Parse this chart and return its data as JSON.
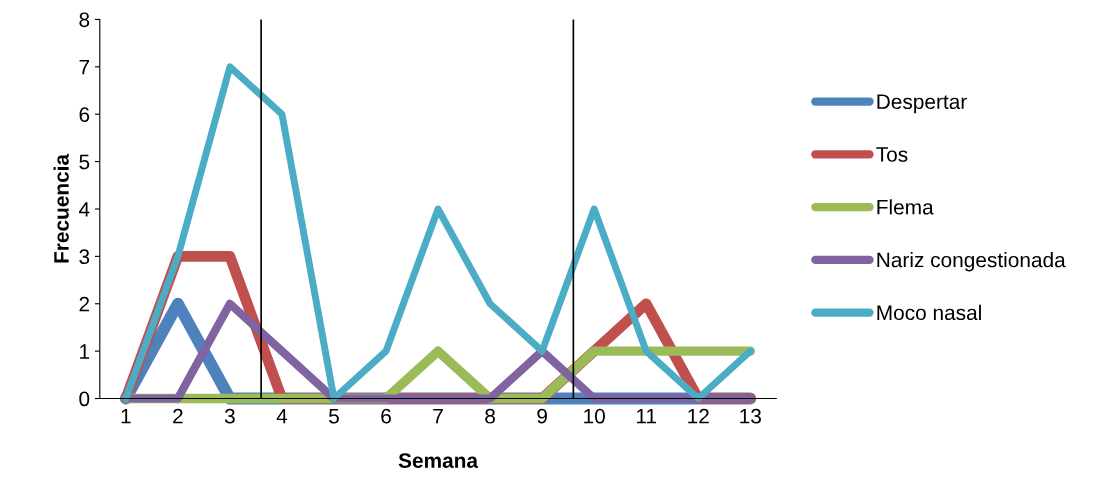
{
  "chart_data": {
    "type": "line",
    "xlabel": "Semana",
    "ylabel": "Frecuencia",
    "x": [
      1,
      2,
      3,
      4,
      5,
      6,
      7,
      8,
      9,
      10,
      11,
      12,
      13
    ],
    "xlim": [
      0.5,
      13.5
    ],
    "xticks": [
      1,
      2,
      3,
      4,
      5,
      6,
      7,
      8,
      9,
      10,
      11,
      12,
      13
    ],
    "ylim": [
      0,
      8
    ],
    "yticks": [
      0,
      1,
      2,
      3,
      4,
      5,
      6,
      7,
      8
    ],
    "series": [
      {
        "name": "Despertar",
        "color": "#4f81bd",
        "values": [
          0,
          2,
          0,
          0,
          0,
          0,
          0,
          0,
          0,
          0,
          0,
          0,
          0
        ]
      },
      {
        "name": "Tos",
        "color": "#c0504d",
        "values": [
          0,
          3,
          3,
          0,
          0,
          0,
          0,
          0,
          0,
          1,
          2,
          0,
          0
        ]
      },
      {
        "name": "Flema",
        "color": "#9bbb59",
        "values": [
          0,
          0,
          0,
          0,
          0,
          0,
          1,
          0,
          0,
          1,
          1,
          1,
          1
        ]
      },
      {
        "name": "Nariz congestionada",
        "color": "#8064a2",
        "values": [
          0,
          0,
          2,
          1,
          0,
          0,
          0,
          0,
          1,
          0,
          0,
          0,
          0
        ]
      },
      {
        "name": "Moco nasal",
        "color": "#4bacc6",
        "values": [
          0,
          3,
          7,
          6,
          0,
          1,
          4,
          2,
          1,
          4,
          1,
          0,
          1
        ]
      }
    ],
    "ref_lines": [
      {
        "axis": "x",
        "value": 3.6,
        "color": "#000000"
      },
      {
        "axis": "x",
        "value": 9.6,
        "color": "#000000"
      }
    ],
    "grid": false,
    "legend": "right",
    "marker": "none",
    "line_style": "solid"
  }
}
